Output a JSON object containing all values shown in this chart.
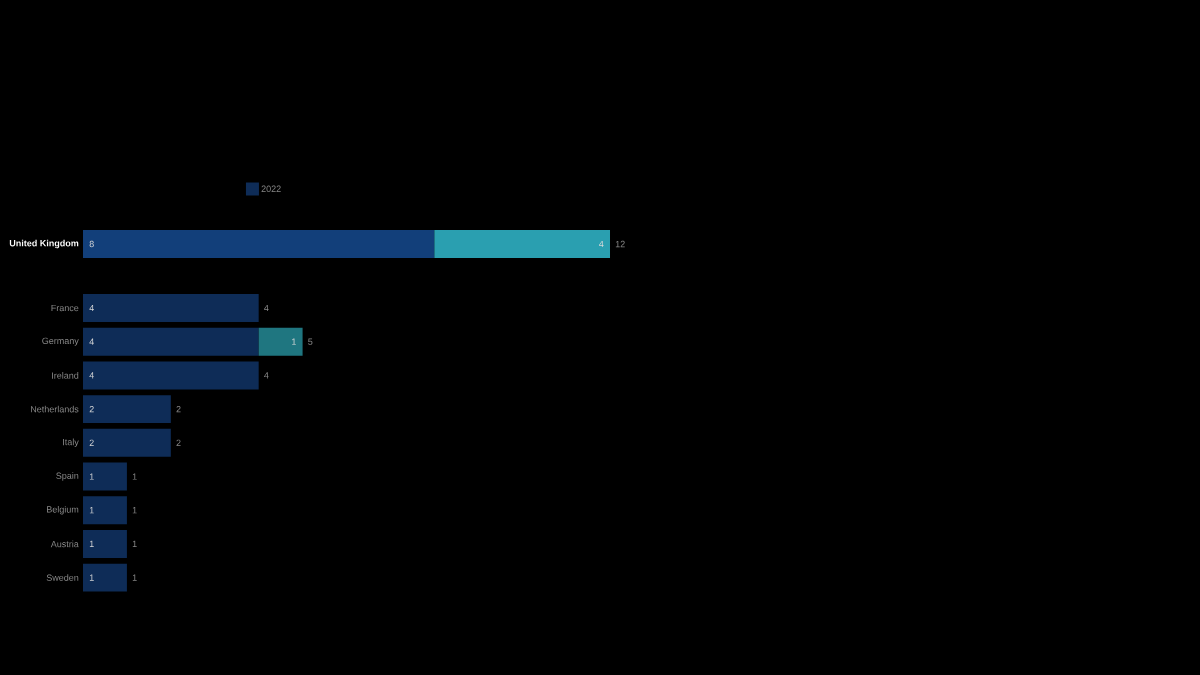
{
  "chart_data": {
    "type": "bar",
    "orientation": "horizontal",
    "stacked": true,
    "categories": [
      "United Kingdom",
      "France",
      "Germany",
      "Ireland",
      "Netherlands",
      "Italy",
      "Spain",
      "Belgium",
      "Austria",
      "Sweden"
    ],
    "series": [
      {
        "name": "2022",
        "color": "#0e2c57",
        "colors": [
          "#123f7a",
          "#0e2c57",
          "#0e2c57",
          "#0e2c57",
          "#0e2c57",
          "#0e2c57",
          "#0e2c57",
          "#0e2c57",
          "#0e2c57",
          "#0e2c57"
        ],
        "values": [
          8,
          4,
          4,
          4,
          2,
          2,
          1,
          1,
          1,
          1
        ]
      },
      {
        "color": "#1f7680",
        "colors": [
          "#2a9fb0",
          "#1f7680",
          "#1f7680",
          "#1f7680",
          "#1f7680",
          "#1f7680",
          "#1f7680",
          "#1f7680",
          "#1f7680",
          "#1f7680"
        ],
        "values": [
          4,
          null,
          1,
          null,
          null,
          null,
          null,
          null,
          null,
          null
        ]
      }
    ],
    "data_labels": true,
    "totals": [
      "12",
      "4",
      "5",
      "4",
      "2",
      "2",
      "1",
      "1",
      "1",
      "1"
    ],
    "legend": "top"
  }
}
